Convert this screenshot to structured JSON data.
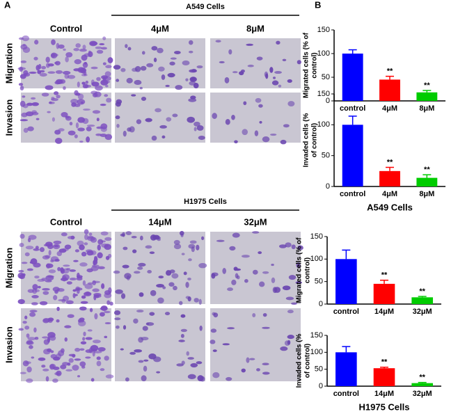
{
  "panels": {
    "a": "A",
    "b": "B"
  },
  "micrographs": [
    {
      "group": "A549 Cells",
      "columns": [
        "Control",
        "4μM",
        "8μM"
      ],
      "rows": [
        "Migration",
        "Invasion"
      ]
    },
    {
      "group": "H1975 Cells",
      "columns": [
        "Control",
        "14μM",
        "32μM"
      ],
      "rows": [
        "Migration",
        "Invasion"
      ]
    }
  ],
  "chart_data": [
    {
      "type": "bar",
      "ylabel": [
        "Migrated cells (% of",
        "control)"
      ],
      "categories": [
        "control",
        "4μM",
        "8μM"
      ],
      "values": [
        100,
        45,
        18
      ],
      "errors": [
        8,
        7,
        4
      ],
      "colors": [
        "#0000ff",
        "#ff0000",
        "#00cc00"
      ],
      "annotations": [
        null,
        "**",
        "**"
      ],
      "ylim": [
        0,
        150
      ],
      "yticks": [
        0,
        50,
        100,
        150
      ]
    },
    {
      "type": "bar",
      "ylabel": [
        "Invaded cells (%",
        "of control)"
      ],
      "categories": [
        "control",
        "4μM",
        "8μM"
      ],
      "values": [
        100,
        25,
        14
      ],
      "errors": [
        14,
        6,
        5
      ],
      "colors": [
        "#0000ff",
        "#ff0000",
        "#00cc00"
      ],
      "annotations": [
        null,
        "**",
        "**"
      ],
      "ylim": [
        0,
        150
      ],
      "yticks": [
        0,
        50,
        100,
        150
      ],
      "xlabel": "A549 Cells"
    },
    {
      "type": "bar",
      "ylabel": [
        "Migrated cells (% of",
        "control)"
      ],
      "categories": [
        "control",
        "14μM",
        "32μM"
      ],
      "values": [
        100,
        45,
        15
      ],
      "errors": [
        20,
        8,
        2
      ],
      "colors": [
        "#0000ff",
        "#ff0000",
        "#00cc00"
      ],
      "annotations": [
        null,
        "**",
        "**"
      ],
      "ylim": [
        0,
        150
      ],
      "yticks": [
        0,
        50,
        100,
        150
      ]
    },
    {
      "type": "bar",
      "ylabel": [
        "Invaded cells (%",
        "of control)"
      ],
      "categories": [
        "control",
        "14μM",
        "32μM"
      ],
      "values": [
        100,
        53,
        9
      ],
      "errors": [
        17,
        3,
        2
      ],
      "colors": [
        "#0000ff",
        "#ff0000",
        "#00cc00"
      ],
      "annotations": [
        null,
        "**",
        "**"
      ],
      "ylim": [
        0,
        150
      ],
      "yticks": [
        0,
        50,
        100,
        150
      ],
      "xlabel": "H1975 Cells"
    }
  ]
}
